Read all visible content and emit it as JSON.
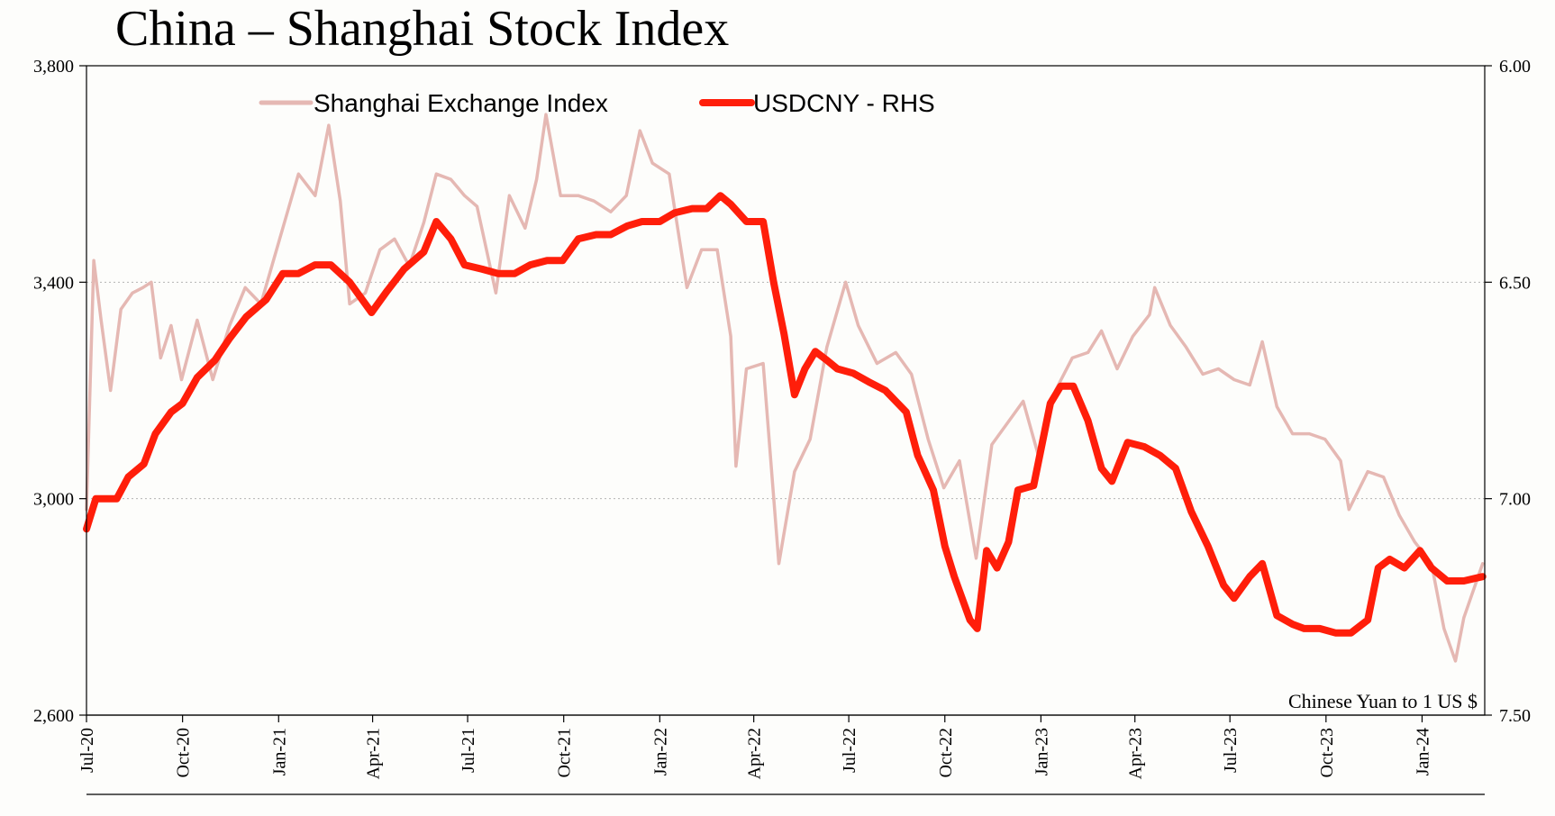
{
  "colors": {
    "background": "#fdfdfb",
    "shanghai": "#e5b8b3",
    "usdcny": "#ff1e0a",
    "axis": "#000000",
    "grid": "#b4b4b4"
  },
  "chart_data": {
    "type": "line",
    "title": "China – Shanghai Stock Index",
    "note": "Chinese Yuan to 1 US $",
    "x_axis": {
      "type": "date",
      "range": [
        "2020-07-01",
        "2024-03-01"
      ],
      "ticks": [
        {
          "date": "2020-07-01",
          "label": "Jul-20"
        },
        {
          "date": "2020-10-01",
          "label": "Oct-20"
        },
        {
          "date": "2021-01-01",
          "label": "Jan-21"
        },
        {
          "date": "2021-04-01",
          "label": "Apr-21"
        },
        {
          "date": "2021-07-01",
          "label": "Jul-21"
        },
        {
          "date": "2021-10-01",
          "label": "Oct-21"
        },
        {
          "date": "2022-01-01",
          "label": "Jan-22"
        },
        {
          "date": "2022-04-01",
          "label": "Apr-22"
        },
        {
          "date": "2022-07-01",
          "label": "Jul-22"
        },
        {
          "date": "2022-10-01",
          "label": "Oct-22"
        },
        {
          "date": "2023-01-01",
          "label": "Jan-23"
        },
        {
          "date": "2023-04-01",
          "label": "Apr-23"
        },
        {
          "date": "2023-07-01",
          "label": "Jul-23"
        },
        {
          "date": "2023-10-01",
          "label": "Oct-23"
        },
        {
          "date": "2024-01-01",
          "label": "Jan-24"
        }
      ]
    },
    "y_left": {
      "range": [
        2600,
        3800
      ],
      "ticks": [
        {
          "value": 2600,
          "label": "2,600"
        },
        {
          "value": 3000,
          "label": "3,000"
        },
        {
          "value": 3400,
          "label": "3,400"
        },
        {
          "value": 3800,
          "label": "3,800"
        }
      ]
    },
    "y_right": {
      "range": [
        7.5,
        6.0
      ],
      "inverted": true,
      "ticks": [
        {
          "value": 6.0,
          "label": "6.00"
        },
        {
          "value": 6.5,
          "label": "6.50"
        },
        {
          "value": 7.0,
          "label": "7.00"
        },
        {
          "value": 7.5,
          "label": "7.50"
        }
      ]
    },
    "grid": {
      "horizontal": true,
      "style": "dotted",
      "values": [
        3000,
        3400
      ]
    },
    "legend": {
      "position": "top-left"
    },
    "series": [
      {
        "name": "Shanghai Exchange Index",
        "axis": "left",
        "color": "#e5b8b3",
        "points": [
          [
            "2020-07-01",
            2980
          ],
          [
            "2020-07-08",
            3440
          ],
          [
            "2020-07-15",
            3330
          ],
          [
            "2020-07-24",
            3200
          ],
          [
            "2020-08-03",
            3350
          ],
          [
            "2020-08-14",
            3380
          ],
          [
            "2020-08-24",
            3390
          ],
          [
            "2020-09-01",
            3400
          ],
          [
            "2020-09-10",
            3260
          ],
          [
            "2020-09-20",
            3320
          ],
          [
            "2020-09-30",
            3220
          ],
          [
            "2020-10-15",
            3330
          ],
          [
            "2020-10-30",
            3220
          ],
          [
            "2020-11-15",
            3320
          ],
          [
            "2020-11-30",
            3390
          ],
          [
            "2020-12-15",
            3360
          ],
          [
            "2021-01-05",
            3500
          ],
          [
            "2021-01-20",
            3600
          ],
          [
            "2021-02-05",
            3560
          ],
          [
            "2021-02-18",
            3690
          ],
          [
            "2021-03-01",
            3550
          ],
          [
            "2021-03-10",
            3360
          ],
          [
            "2021-03-25",
            3380
          ],
          [
            "2021-04-08",
            3460
          ],
          [
            "2021-04-22",
            3480
          ],
          [
            "2021-05-06",
            3430
          ],
          [
            "2021-05-20",
            3510
          ],
          [
            "2021-06-01",
            3600
          ],
          [
            "2021-06-15",
            3590
          ],
          [
            "2021-06-28",
            3560
          ],
          [
            "2021-07-10",
            3540
          ],
          [
            "2021-07-28",
            3380
          ],
          [
            "2021-08-10",
            3560
          ],
          [
            "2021-08-25",
            3500
          ],
          [
            "2021-09-05",
            3590
          ],
          [
            "2021-09-14",
            3710
          ],
          [
            "2021-09-28",
            3560
          ],
          [
            "2021-10-15",
            3560
          ],
          [
            "2021-10-30",
            3550
          ],
          [
            "2021-11-15",
            3530
          ],
          [
            "2021-11-30",
            3560
          ],
          [
            "2021-12-13",
            3680
          ],
          [
            "2021-12-25",
            3620
          ],
          [
            "2022-01-10",
            3600
          ],
          [
            "2022-01-27",
            3390
          ],
          [
            "2022-02-10",
            3460
          ],
          [
            "2022-02-25",
            3460
          ],
          [
            "2022-03-10",
            3300
          ],
          [
            "2022-03-15",
            3060
          ],
          [
            "2022-03-25",
            3240
          ],
          [
            "2022-04-10",
            3250
          ],
          [
            "2022-04-25",
            2880
          ],
          [
            "2022-05-10",
            3050
          ],
          [
            "2022-05-25",
            3110
          ],
          [
            "2022-06-10",
            3280
          ],
          [
            "2022-06-28",
            3400
          ],
          [
            "2022-07-10",
            3320
          ],
          [
            "2022-07-28",
            3250
          ],
          [
            "2022-08-15",
            3270
          ],
          [
            "2022-08-30",
            3230
          ],
          [
            "2022-09-15",
            3110
          ],
          [
            "2022-09-30",
            3020
          ],
          [
            "2022-10-15",
            3070
          ],
          [
            "2022-10-31",
            2890
          ],
          [
            "2022-11-15",
            3100
          ],
          [
            "2022-11-30",
            3140
          ],
          [
            "2022-12-15",
            3180
          ],
          [
            "2022-12-31",
            3070
          ],
          [
            "2023-01-15",
            3200
          ],
          [
            "2023-01-31",
            3260
          ],
          [
            "2023-02-15",
            3270
          ],
          [
            "2023-02-28",
            3310
          ],
          [
            "2023-03-15",
            3240
          ],
          [
            "2023-03-30",
            3300
          ],
          [
            "2023-04-15",
            3340
          ],
          [
            "2023-04-20",
            3390
          ],
          [
            "2023-05-05",
            3320
          ],
          [
            "2023-05-20",
            3280
          ],
          [
            "2023-06-05",
            3230
          ],
          [
            "2023-06-20",
            3240
          ],
          [
            "2023-07-05",
            3220
          ],
          [
            "2023-07-20",
            3210
          ],
          [
            "2023-08-01",
            3290
          ],
          [
            "2023-08-15",
            3170
          ],
          [
            "2023-08-30",
            3120
          ],
          [
            "2023-09-15",
            3120
          ],
          [
            "2023-09-30",
            3110
          ],
          [
            "2023-10-15",
            3070
          ],
          [
            "2023-10-23",
            2980
          ],
          [
            "2023-11-10",
            3050
          ],
          [
            "2023-11-25",
            3040
          ],
          [
            "2023-12-10",
            2970
          ],
          [
            "2023-12-25",
            2920
          ],
          [
            "2024-01-10",
            2880
          ],
          [
            "2024-01-22",
            2760
          ],
          [
            "2024-02-02",
            2700
          ],
          [
            "2024-02-10",
            2780
          ],
          [
            "2024-02-28",
            2880
          ]
        ]
      },
      {
        "name": "USDCNY - RHS",
        "axis": "right",
        "color": "#ff1e0a",
        "points": [
          [
            "2020-07-01",
            7.07
          ],
          [
            "2020-07-10",
            7.0
          ],
          [
            "2020-07-20",
            7.0
          ],
          [
            "2020-07-30",
            7.0
          ],
          [
            "2020-08-10",
            6.95
          ],
          [
            "2020-08-25",
            6.92
          ],
          [
            "2020-09-05",
            6.85
          ],
          [
            "2020-09-20",
            6.8
          ],
          [
            "2020-10-01",
            6.78
          ],
          [
            "2020-10-15",
            6.72
          ],
          [
            "2020-11-01",
            6.68
          ],
          [
            "2020-11-15",
            6.63
          ],
          [
            "2020-12-01",
            6.58
          ],
          [
            "2020-12-20",
            6.54
          ],
          [
            "2021-01-05",
            6.48
          ],
          [
            "2021-01-20",
            6.48
          ],
          [
            "2021-02-05",
            6.46
          ],
          [
            "2021-02-20",
            6.46
          ],
          [
            "2021-03-10",
            6.5
          ],
          [
            "2021-03-31",
            6.57
          ],
          [
            "2021-04-15",
            6.52
          ],
          [
            "2021-05-01",
            6.47
          ],
          [
            "2021-05-20",
            6.43
          ],
          [
            "2021-06-01",
            6.36
          ],
          [
            "2021-06-15",
            6.4
          ],
          [
            "2021-06-28",
            6.46
          ],
          [
            "2021-07-15",
            6.47
          ],
          [
            "2021-07-30",
            6.48
          ],
          [
            "2021-08-15",
            6.48
          ],
          [
            "2021-08-30",
            6.46
          ],
          [
            "2021-09-15",
            6.45
          ],
          [
            "2021-09-30",
            6.45
          ],
          [
            "2021-10-15",
            6.4
          ],
          [
            "2021-11-01",
            6.39
          ],
          [
            "2021-11-15",
            6.39
          ],
          [
            "2021-12-01",
            6.37
          ],
          [
            "2021-12-15",
            6.36
          ],
          [
            "2022-01-01",
            6.36
          ],
          [
            "2022-01-15",
            6.34
          ],
          [
            "2022-02-01",
            6.33
          ],
          [
            "2022-02-15",
            6.33
          ],
          [
            "2022-02-28",
            6.3
          ],
          [
            "2022-03-10",
            6.32
          ],
          [
            "2022-03-25",
            6.36
          ],
          [
            "2022-04-10",
            6.36
          ],
          [
            "2022-04-20",
            6.5
          ],
          [
            "2022-04-30",
            6.62
          ],
          [
            "2022-05-10",
            6.76
          ],
          [
            "2022-05-20",
            6.7
          ],
          [
            "2022-05-30",
            6.66
          ],
          [
            "2022-06-10",
            6.68
          ],
          [
            "2022-06-20",
            6.7
          ],
          [
            "2022-07-05",
            6.71
          ],
          [
            "2022-07-20",
            6.73
          ],
          [
            "2022-08-05",
            6.75
          ],
          [
            "2022-08-25",
            6.8
          ],
          [
            "2022-09-05",
            6.9
          ],
          [
            "2022-09-20",
            6.98
          ],
          [
            "2022-10-01",
            7.11
          ],
          [
            "2022-10-10",
            7.18
          ],
          [
            "2022-10-25",
            7.28
          ],
          [
            "2022-11-01",
            7.3
          ],
          [
            "2022-11-10",
            7.12
          ],
          [
            "2022-11-20",
            7.16
          ],
          [
            "2022-12-01",
            7.1
          ],
          [
            "2022-12-10",
            6.98
          ],
          [
            "2022-12-25",
            6.97
          ],
          [
            "2023-01-10",
            6.78
          ],
          [
            "2023-01-20",
            6.74
          ],
          [
            "2023-02-01",
            6.74
          ],
          [
            "2023-02-15",
            6.82
          ],
          [
            "2023-02-28",
            6.93
          ],
          [
            "2023-03-10",
            6.96
          ],
          [
            "2023-03-25",
            6.87
          ],
          [
            "2023-04-10",
            6.88
          ],
          [
            "2023-04-25",
            6.9
          ],
          [
            "2023-05-10",
            6.93
          ],
          [
            "2023-05-25",
            7.03
          ],
          [
            "2023-06-10",
            7.11
          ],
          [
            "2023-06-25",
            7.2
          ],
          [
            "2023-07-05",
            7.23
          ],
          [
            "2023-07-20",
            7.18
          ],
          [
            "2023-08-01",
            7.15
          ],
          [
            "2023-08-15",
            7.27
          ],
          [
            "2023-08-30",
            7.29
          ],
          [
            "2023-09-10",
            7.3
          ],
          [
            "2023-09-25",
            7.3
          ],
          [
            "2023-10-10",
            7.31
          ],
          [
            "2023-10-25",
            7.31
          ],
          [
            "2023-11-10",
            7.28
          ],
          [
            "2023-11-20",
            7.16
          ],
          [
            "2023-12-01",
            7.14
          ],
          [
            "2023-12-15",
            7.16
          ],
          [
            "2023-12-30",
            7.12
          ],
          [
            "2024-01-10",
            7.16
          ],
          [
            "2024-01-25",
            7.19
          ],
          [
            "2024-02-10",
            7.19
          ],
          [
            "2024-02-28",
            7.18
          ]
        ]
      }
    ]
  }
}
